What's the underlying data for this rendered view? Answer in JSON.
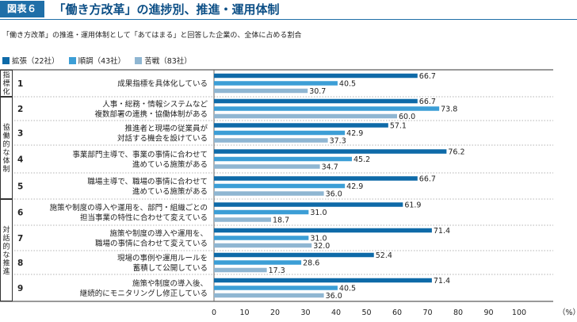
{
  "header": {
    "badge": "図表６",
    "title": "「働き方改革」の進捗別、推進・運用体制"
  },
  "subtitle": "「働き方改革」の推進・運用体制として「あてはまる」と回答した企業の、全体に占める割合",
  "chart_data": {
    "type": "bar",
    "orientation": "horizontal",
    "series": [
      {
        "name": "拡張（22社）",
        "color": "#0e6aa8"
      },
      {
        "name": "順調（43社）",
        "color": "#3c9ed6"
      },
      {
        "name": "苦戦（83社）",
        "color": "#8fb6d2"
      }
    ],
    "groups": [
      {
        "label": "指標化",
        "items": [
          1
        ]
      },
      {
        "label": "協働的な体制",
        "items": [
          2,
          3,
          4,
          5
        ]
      },
      {
        "label": "対話的な推進",
        "items": [
          6,
          7,
          8,
          9
        ]
      }
    ],
    "items": [
      {
        "num": "1",
        "lines": [
          "成果指標を具体化している"
        ],
        "values": [
          66.7,
          40.5,
          30.7
        ]
      },
      {
        "num": "2",
        "lines": [
          "人事・総務・情報システムなど",
          "複数部署の連携・協働体制がある"
        ],
        "values": [
          66.7,
          73.8,
          60.0
        ]
      },
      {
        "num": "3",
        "lines": [
          "推進者と現場の従業員が",
          "対話する機会を設けている"
        ],
        "values": [
          57.1,
          42.9,
          37.3
        ]
      },
      {
        "num": "4",
        "lines": [
          "事業部門主導で、事業の事情に合わせて",
          "進めている施策がある"
        ],
        "values": [
          76.2,
          45.2,
          34.7
        ]
      },
      {
        "num": "5",
        "lines": [
          "職場主導で、職場の事情に合わせて",
          "進めている施策がある"
        ],
        "values": [
          66.7,
          42.9,
          36.0
        ]
      },
      {
        "num": "6",
        "lines": [
          "施策や制度の導入や運用を、部門・組織ごとの",
          "担当事業の特性に合わせて変えている"
        ],
        "values": [
          61.9,
          31.0,
          18.7
        ]
      },
      {
        "num": "7",
        "lines": [
          "施策や制度の導入や運用を、",
          "職場の事情に合わせて変えている"
        ],
        "values": [
          71.4,
          31.0,
          32.0
        ]
      },
      {
        "num": "8",
        "lines": [
          "現場の事例や運用ルールを",
          "蓄積して公開している"
        ],
        "values": [
          52.4,
          28.6,
          17.3
        ]
      },
      {
        "num": "9",
        "lines": [
          "施策や制度の導入後、",
          "継続的にモニタリングし修正している"
        ],
        "values": [
          71.4,
          40.5,
          36.0
        ]
      }
    ],
    "x_ticks": [
      "0",
      "10",
      "20",
      "30",
      "40",
      "50",
      "60",
      "70",
      "80",
      "90",
      "100"
    ],
    "x_unit": "（%）",
    "xlim": [
      0,
      100
    ]
  }
}
